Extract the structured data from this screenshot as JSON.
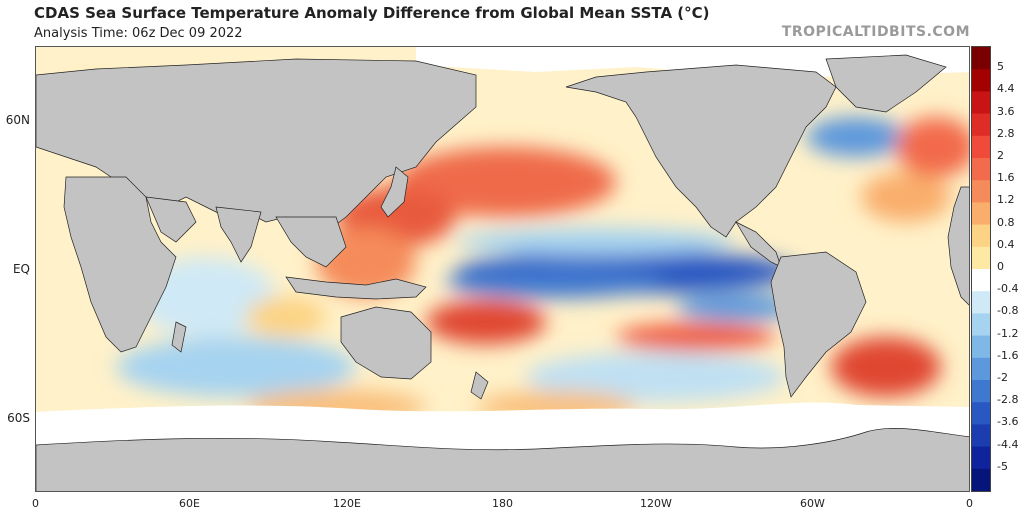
{
  "header": {
    "title": "CDAS Sea Surface Temperature Anomaly Difference from Global Mean SSTA (°C)",
    "analysis_time": "Analysis Time: 06z Dec 09 2022",
    "watermark": "TROPICALTIDBITS.COM"
  },
  "axes": {
    "lat_labels": [
      "60N",
      "EQ",
      "60S"
    ],
    "lon_labels": [
      "0",
      "60E",
      "120E",
      "180",
      "120W",
      "60W",
      "0"
    ]
  },
  "colorbar": {
    "labels": [
      "5",
      "4.4",
      "3.6",
      "2.8",
      "2",
      "1.6",
      "1.2",
      "0.8",
      "0.4",
      "0",
      "-0.4",
      "-0.8",
      "-1.2",
      "-1.6",
      "-2",
      "-2.8",
      "-3.6",
      "-4.4",
      "-5"
    ],
    "colors": [
      "#7a0000",
      "#a30000",
      "#c81414",
      "#de2d26",
      "#ef4a3a",
      "#f26b4c",
      "#f58b5a",
      "#f9ae6c",
      "#fcd384",
      "#fde9a4",
      "#ffffff",
      "#cfe9f6",
      "#a6d3f0",
      "#7fb8e6",
      "#5d98dc",
      "#3f78cf",
      "#2a58c2",
      "#1c3db0",
      "#0f249c",
      "#06157a"
    ]
  },
  "map_colors": {
    "land": "#c3c3c3",
    "ice": "#ffffff",
    "neutral_ocean": "#fff4d0",
    "warm": "#f26b4c",
    "hot": "#d7301f",
    "cool": "#a6d3f0",
    "cold": "#2a58c2"
  }
}
